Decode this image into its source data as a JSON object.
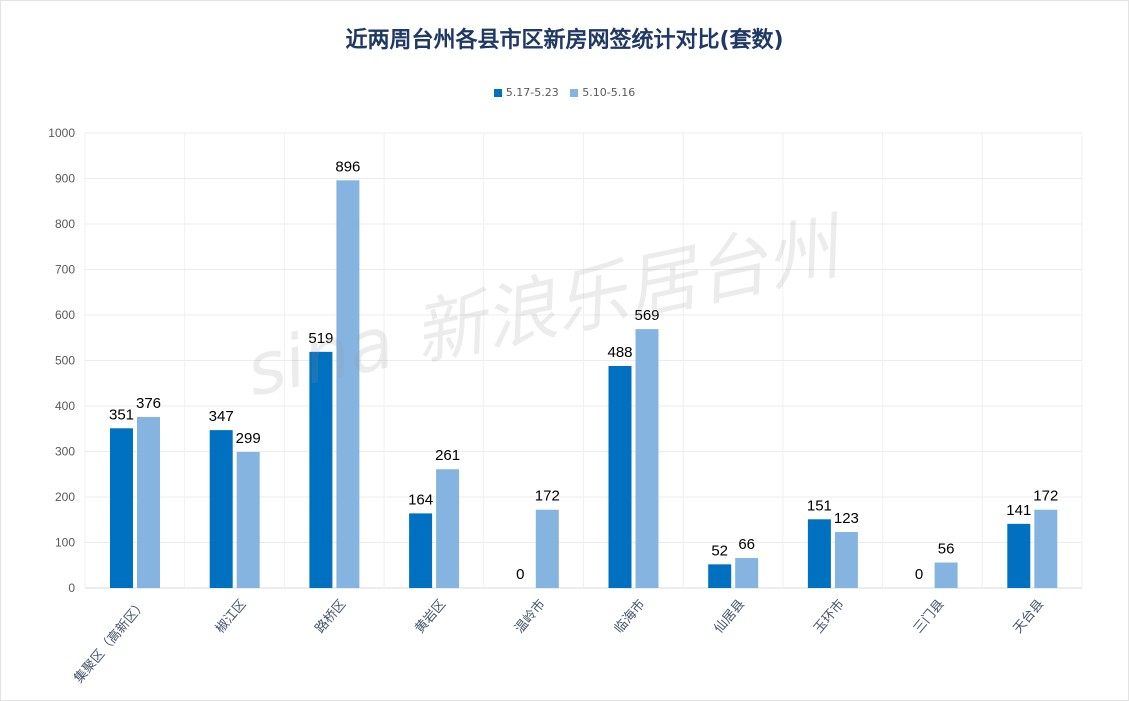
{
  "chart_data": {
    "type": "bar",
    "title": "近两周台州各县市区新房网签统计对比(套数)",
    "categories": [
      "集聚区（高新区）",
      "椒江区",
      "路桥区",
      "黄岩区",
      "温岭市",
      "临海市",
      "仙居县",
      "玉环市",
      "三门县",
      "天台县"
    ],
    "series": [
      {
        "name": "5.17-5.23",
        "color": "#0070c0",
        "values": [
          351,
          347,
          519,
          164,
          0,
          488,
          52,
          151,
          0,
          141
        ]
      },
      {
        "name": "5.10-5.16",
        "color": "#85b4e0",
        "values": [
          376,
          299,
          896,
          261,
          172,
          569,
          66,
          123,
          56,
          172
        ]
      }
    ],
    "ylim": [
      0,
      1000
    ],
    "yticks": [
      0,
      100,
      200,
      300,
      400,
      500,
      600,
      700,
      800,
      900,
      1000
    ],
    "grid": true,
    "legend": "top",
    "data_labels": true
  },
  "watermark": "sina 新浪乐居台州"
}
